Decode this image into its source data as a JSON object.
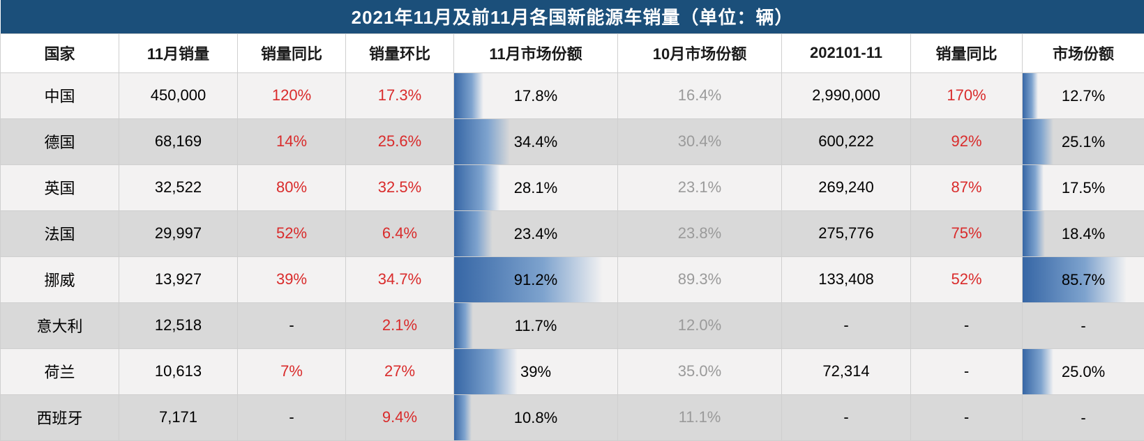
{
  "title": "2021年11月及前11月各国新能源车销量（单位：辆）",
  "columns": [
    "国家",
    "11月销量",
    "销量同比",
    "销量环比",
    "11月市场份额",
    "10月市场份额",
    "202101-11",
    "销量同比",
    "市场份额"
  ],
  "colors": {
    "title_bg": "#1b4f7a",
    "title_text": "#ffffff",
    "row_odd_bg": "#f3f2f2",
    "row_even_bg": "#d9d9d9",
    "border": "#cfcfcf",
    "value_red": "#d92b2b",
    "value_grey": "#9a9a9a",
    "bar_gradient_from": "#3666a5",
    "bar_gradient_to": "rgba(126,163,206,0)"
  },
  "bar_columns": [
    4,
    8
  ],
  "grey_columns": [
    5
  ],
  "red_columns": [
    2,
    3,
    7
  ],
  "rows": [
    {
      "country": "中国",
      "nov_sales": "450,000",
      "yoy": "120%",
      "mom": "17.3%",
      "nov_share": "17.8%",
      "nov_share_bar": 17.8,
      "oct_share": "16.4%",
      "ytd": "2,990,000",
      "ytd_yoy": "170%",
      "ytd_share": "12.7%",
      "ytd_share_bar": 12.7
    },
    {
      "country": "德国",
      "nov_sales": "68,169",
      "yoy": "14%",
      "mom": "25.6%",
      "nov_share": "34.4%",
      "nov_share_bar": 34.4,
      "oct_share": "30.4%",
      "ytd": "600,222",
      "ytd_yoy": "92%",
      "ytd_share": "25.1%",
      "ytd_share_bar": 25.1
    },
    {
      "country": "英国",
      "nov_sales": "32,522",
      "yoy": "80%",
      "mom": "32.5%",
      "nov_share": "28.1%",
      "nov_share_bar": 28.1,
      "oct_share": "23.1%",
      "ytd": "269,240",
      "ytd_yoy": "87%",
      "ytd_share": "17.5%",
      "ytd_share_bar": 17.5
    },
    {
      "country": "法国",
      "nov_sales": "29,997",
      "yoy": "52%",
      "mom": "6.4%",
      "nov_share": "23.4%",
      "nov_share_bar": 23.4,
      "oct_share": "23.8%",
      "ytd": "275,776",
      "ytd_yoy": "75%",
      "ytd_share": "18.4%",
      "ytd_share_bar": 18.4
    },
    {
      "country": "挪威",
      "nov_sales": "13,927",
      "yoy": "39%",
      "mom": "34.7%",
      "nov_share": "91.2%",
      "nov_share_bar": 91.2,
      "oct_share": "89.3%",
      "ytd": "133,408",
      "ytd_yoy": "52%",
      "ytd_share": "85.7%",
      "ytd_share_bar": 85.7
    },
    {
      "country": "意大利",
      "nov_sales": "12,518",
      "yoy": "-",
      "mom": "2.1%",
      "nov_share": "11.7%",
      "nov_share_bar": 11.7,
      "oct_share": "12.0%",
      "ytd": "-",
      "ytd_yoy": "-",
      "ytd_share": "-",
      "ytd_share_bar": 0
    },
    {
      "country": "荷兰",
      "nov_sales": "10,613",
      "yoy": "7%",
      "mom": "27%",
      "nov_share": "39%",
      "nov_share_bar": 39,
      "oct_share": "35.0%",
      "ytd": "72,314",
      "ytd_yoy": "-",
      "ytd_share": "25.0%",
      "ytd_share_bar": 25.0
    },
    {
      "country": "西班牙",
      "nov_sales": "7,171",
      "yoy": "-",
      "mom": "9.4%",
      "nov_share": "10.8%",
      "nov_share_bar": 10.8,
      "oct_share": "11.1%",
      "ytd": "-",
      "ytd_yoy": "-",
      "ytd_share": "-",
      "ytd_share_bar": 0
    }
  ]
}
